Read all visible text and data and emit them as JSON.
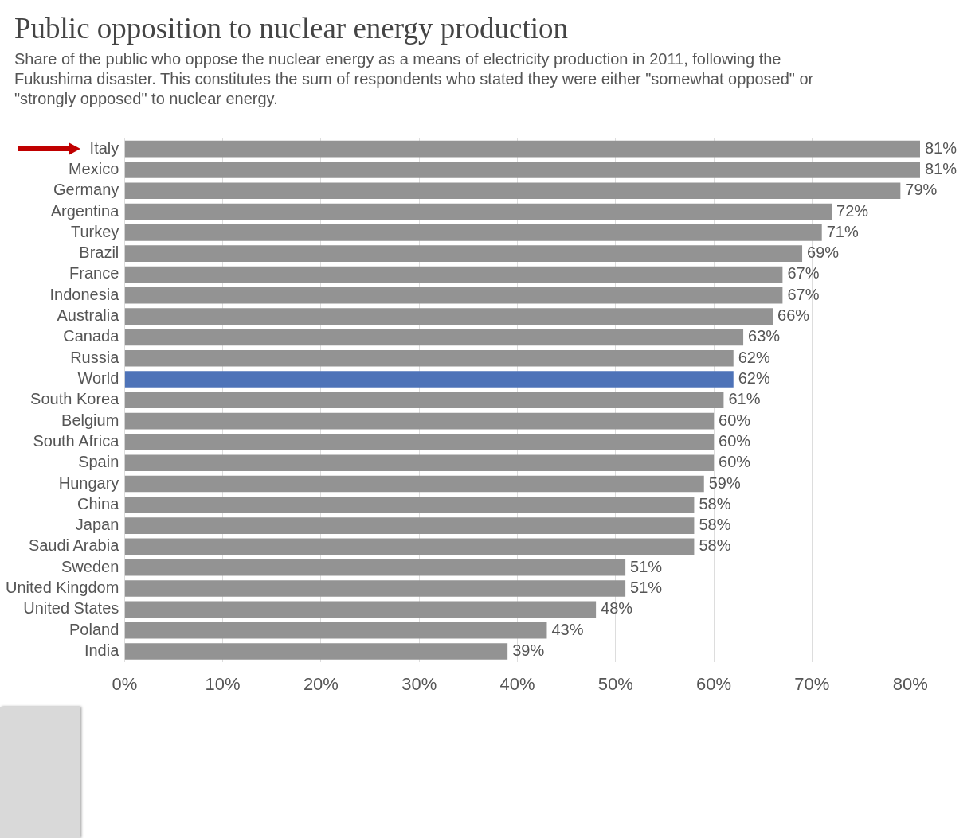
{
  "chart_data": {
    "type": "bar",
    "orientation": "horizontal",
    "title": "Public opposition to nuclear energy production",
    "subtitle": "Share of the public who oppose the nuclear energy as a means of electricity production in 2011, following the Fukushima disaster. This constitutes the sum of respondents who stated they were either \"somewhat opposed\" or \"strongly opposed\" to nuclear energy.",
    "categories": [
      "Italy",
      "Mexico",
      "Germany",
      "Argentina",
      "Turkey",
      "Brazil",
      "France",
      "Indonesia",
      "Australia",
      "Canada",
      "Russia",
      "World",
      "South Korea",
      "Belgium",
      "South Africa",
      "Spain",
      "Hungary",
      "China",
      "Japan",
      "Saudi Arabia",
      "Sweden",
      "United Kingdom",
      "United States",
      "Poland",
      "India"
    ],
    "values": [
      81,
      81,
      79,
      72,
      71,
      69,
      67,
      67,
      66,
      63,
      62,
      62,
      61,
      60,
      60,
      60,
      59,
      58,
      58,
      58,
      51,
      51,
      48,
      43,
      39
    ],
    "value_labels": [
      "81%",
      "81%",
      "79%",
      "72%",
      "71%",
      "69%",
      "67%",
      "67%",
      "66%",
      "63%",
      "62%",
      "62%",
      "61%",
      "60%",
      "60%",
      "60%",
      "59%",
      "58%",
      "58%",
      "58%",
      "51%",
      "51%",
      "48%",
      "43%",
      "39%"
    ],
    "colors": [
      "#939393",
      "#939393",
      "#939393",
      "#939393",
      "#939393",
      "#939393",
      "#939393",
      "#939393",
      "#939393",
      "#939393",
      "#939393",
      "#4e73b8",
      "#939393",
      "#939393",
      "#939393",
      "#939393",
      "#939393",
      "#939393",
      "#939393",
      "#939393",
      "#939393",
      "#939393",
      "#939393",
      "#939393",
      "#939393"
    ],
    "xlim": [
      0,
      81
    ],
    "xticks": [
      {
        "value": 0,
        "label": "0%"
      },
      {
        "value": 10,
        "label": "10%"
      },
      {
        "value": 20,
        "label": "20%"
      },
      {
        "value": 30,
        "label": "30%"
      },
      {
        "value": 40,
        "label": "40%"
      },
      {
        "value": 50,
        "label": "50%"
      },
      {
        "value": 60,
        "label": "60%"
      },
      {
        "value": 70,
        "label": "70%"
      },
      {
        "value": 80,
        "label": "80%"
      }
    ],
    "grid": "x",
    "legend": false
  }
}
